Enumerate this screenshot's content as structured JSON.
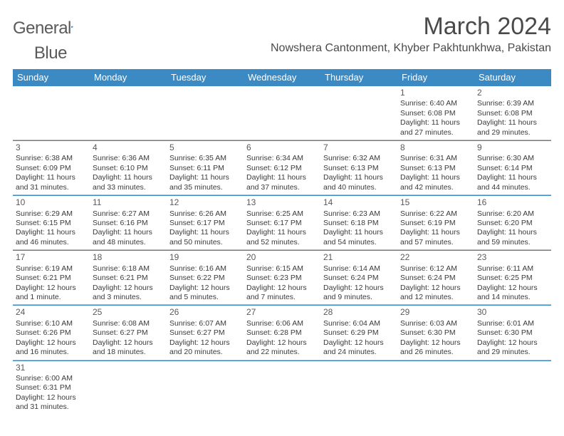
{
  "logo": {
    "text1": "General",
    "text2": "Blue"
  },
  "title": "March 2024",
  "location": "Nowshera Cantonment, Khyber Pakhtunkhwa, Pakistan",
  "dow": [
    "Sunday",
    "Monday",
    "Tuesday",
    "Wednesday",
    "Thursday",
    "Friday",
    "Saturday"
  ],
  "colors": {
    "header_bg": "#3b8ac4",
    "header_text": "#ffffff",
    "text": "#3a3a3a",
    "accent": "#2b7fbf"
  },
  "weeks": [
    [
      null,
      null,
      null,
      null,
      null,
      {
        "n": "1",
        "sr": "Sunrise: 6:40 AM",
        "ss": "Sunset: 6:08 PM",
        "d1": "Daylight: 11 hours",
        "d2": "and 27 minutes."
      },
      {
        "n": "2",
        "sr": "Sunrise: 6:39 AM",
        "ss": "Sunset: 6:08 PM",
        "d1": "Daylight: 11 hours",
        "d2": "and 29 minutes."
      }
    ],
    [
      {
        "n": "3",
        "sr": "Sunrise: 6:38 AM",
        "ss": "Sunset: 6:09 PM",
        "d1": "Daylight: 11 hours",
        "d2": "and 31 minutes."
      },
      {
        "n": "4",
        "sr": "Sunrise: 6:36 AM",
        "ss": "Sunset: 6:10 PM",
        "d1": "Daylight: 11 hours",
        "d2": "and 33 minutes."
      },
      {
        "n": "5",
        "sr": "Sunrise: 6:35 AM",
        "ss": "Sunset: 6:11 PM",
        "d1": "Daylight: 11 hours",
        "d2": "and 35 minutes."
      },
      {
        "n": "6",
        "sr": "Sunrise: 6:34 AM",
        "ss": "Sunset: 6:12 PM",
        "d1": "Daylight: 11 hours",
        "d2": "and 37 minutes."
      },
      {
        "n": "7",
        "sr": "Sunrise: 6:32 AM",
        "ss": "Sunset: 6:13 PM",
        "d1": "Daylight: 11 hours",
        "d2": "and 40 minutes."
      },
      {
        "n": "8",
        "sr": "Sunrise: 6:31 AM",
        "ss": "Sunset: 6:13 PM",
        "d1": "Daylight: 11 hours",
        "d2": "and 42 minutes."
      },
      {
        "n": "9",
        "sr": "Sunrise: 6:30 AM",
        "ss": "Sunset: 6:14 PM",
        "d1": "Daylight: 11 hours",
        "d2": "and 44 minutes."
      }
    ],
    [
      {
        "n": "10",
        "sr": "Sunrise: 6:29 AM",
        "ss": "Sunset: 6:15 PM",
        "d1": "Daylight: 11 hours",
        "d2": "and 46 minutes."
      },
      {
        "n": "11",
        "sr": "Sunrise: 6:27 AM",
        "ss": "Sunset: 6:16 PM",
        "d1": "Daylight: 11 hours",
        "d2": "and 48 minutes."
      },
      {
        "n": "12",
        "sr": "Sunrise: 6:26 AM",
        "ss": "Sunset: 6:17 PM",
        "d1": "Daylight: 11 hours",
        "d2": "and 50 minutes."
      },
      {
        "n": "13",
        "sr": "Sunrise: 6:25 AM",
        "ss": "Sunset: 6:17 PM",
        "d1": "Daylight: 11 hours",
        "d2": "and 52 minutes."
      },
      {
        "n": "14",
        "sr": "Sunrise: 6:23 AM",
        "ss": "Sunset: 6:18 PM",
        "d1": "Daylight: 11 hours",
        "d2": "and 54 minutes."
      },
      {
        "n": "15",
        "sr": "Sunrise: 6:22 AM",
        "ss": "Sunset: 6:19 PM",
        "d1": "Daylight: 11 hours",
        "d2": "and 57 minutes."
      },
      {
        "n": "16",
        "sr": "Sunrise: 6:20 AM",
        "ss": "Sunset: 6:20 PM",
        "d1": "Daylight: 11 hours",
        "d2": "and 59 minutes."
      }
    ],
    [
      {
        "n": "17",
        "sr": "Sunrise: 6:19 AM",
        "ss": "Sunset: 6:21 PM",
        "d1": "Daylight: 12 hours",
        "d2": "and 1 minute."
      },
      {
        "n": "18",
        "sr": "Sunrise: 6:18 AM",
        "ss": "Sunset: 6:21 PM",
        "d1": "Daylight: 12 hours",
        "d2": "and 3 minutes."
      },
      {
        "n": "19",
        "sr": "Sunrise: 6:16 AM",
        "ss": "Sunset: 6:22 PM",
        "d1": "Daylight: 12 hours",
        "d2": "and 5 minutes."
      },
      {
        "n": "20",
        "sr": "Sunrise: 6:15 AM",
        "ss": "Sunset: 6:23 PM",
        "d1": "Daylight: 12 hours",
        "d2": "and 7 minutes."
      },
      {
        "n": "21",
        "sr": "Sunrise: 6:14 AM",
        "ss": "Sunset: 6:24 PM",
        "d1": "Daylight: 12 hours",
        "d2": "and 9 minutes."
      },
      {
        "n": "22",
        "sr": "Sunrise: 6:12 AM",
        "ss": "Sunset: 6:24 PM",
        "d1": "Daylight: 12 hours",
        "d2": "and 12 minutes."
      },
      {
        "n": "23",
        "sr": "Sunrise: 6:11 AM",
        "ss": "Sunset: 6:25 PM",
        "d1": "Daylight: 12 hours",
        "d2": "and 14 minutes."
      }
    ],
    [
      {
        "n": "24",
        "sr": "Sunrise: 6:10 AM",
        "ss": "Sunset: 6:26 PM",
        "d1": "Daylight: 12 hours",
        "d2": "and 16 minutes."
      },
      {
        "n": "25",
        "sr": "Sunrise: 6:08 AM",
        "ss": "Sunset: 6:27 PM",
        "d1": "Daylight: 12 hours",
        "d2": "and 18 minutes."
      },
      {
        "n": "26",
        "sr": "Sunrise: 6:07 AM",
        "ss": "Sunset: 6:27 PM",
        "d1": "Daylight: 12 hours",
        "d2": "and 20 minutes."
      },
      {
        "n": "27",
        "sr": "Sunrise: 6:06 AM",
        "ss": "Sunset: 6:28 PM",
        "d1": "Daylight: 12 hours",
        "d2": "and 22 minutes."
      },
      {
        "n": "28",
        "sr": "Sunrise: 6:04 AM",
        "ss": "Sunset: 6:29 PM",
        "d1": "Daylight: 12 hours",
        "d2": "and 24 minutes."
      },
      {
        "n": "29",
        "sr": "Sunrise: 6:03 AM",
        "ss": "Sunset: 6:30 PM",
        "d1": "Daylight: 12 hours",
        "d2": "and 26 minutes."
      },
      {
        "n": "30",
        "sr": "Sunrise: 6:01 AM",
        "ss": "Sunset: 6:30 PM",
        "d1": "Daylight: 12 hours",
        "d2": "and 29 minutes."
      }
    ],
    [
      {
        "n": "31",
        "sr": "Sunrise: 6:00 AM",
        "ss": "Sunset: 6:31 PM",
        "d1": "Daylight: 12 hours",
        "d2": "and 31 minutes."
      },
      null,
      null,
      null,
      null,
      null,
      null
    ]
  ]
}
